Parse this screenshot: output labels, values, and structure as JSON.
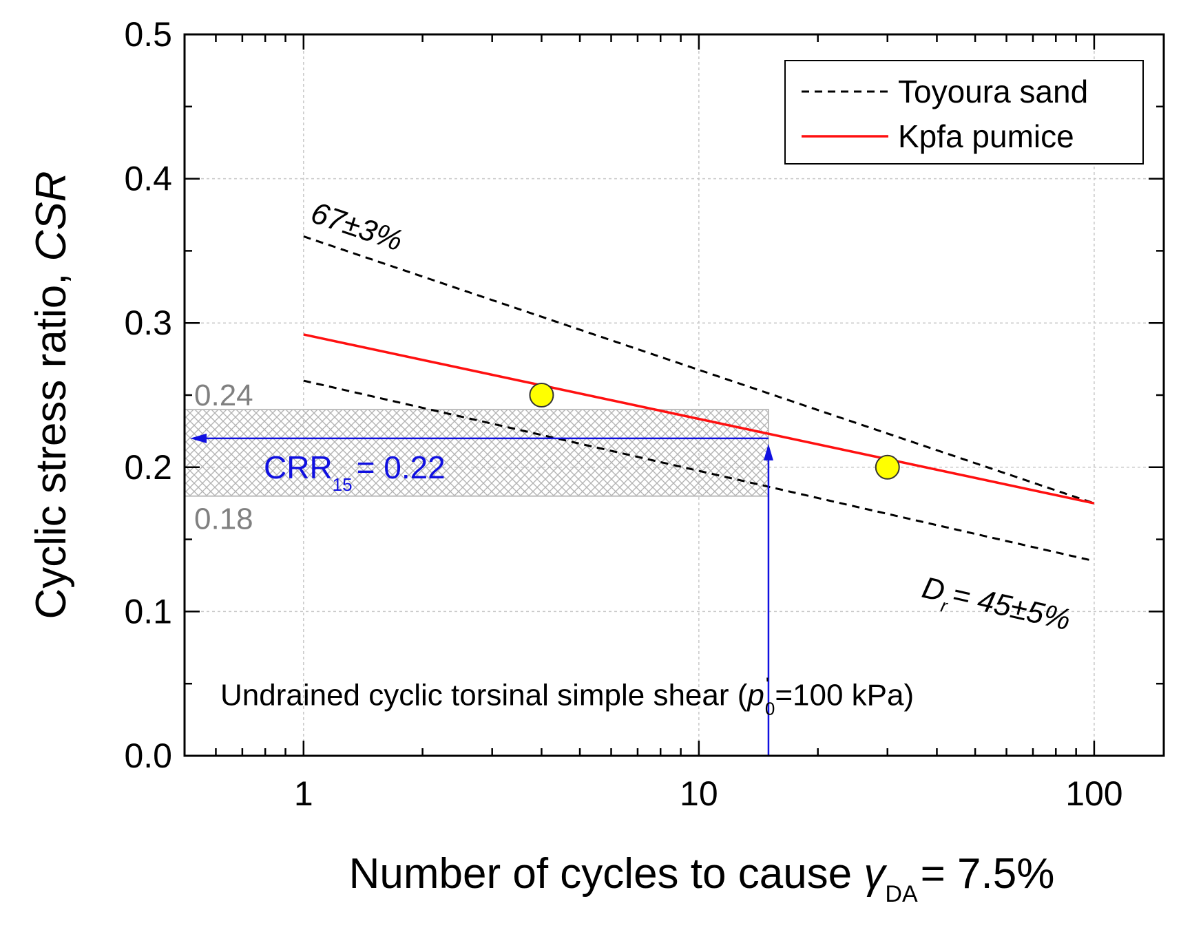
{
  "chart_data": {
    "type": "line",
    "title": "",
    "xlabel": "Number of cycles to cause γDA = 7.5%",
    "xlabel_parts": {
      "main": "Number of cycles to cause ",
      "symbol": "γ",
      "subscript": "DA",
      "suffix": "= 7.5%"
    },
    "ylabel": "Cyclic stress ratio, CSR",
    "ylabel_parts": {
      "main": "Cyclic stress ratio,  ",
      "italic": "CSR"
    },
    "x_scale": "log",
    "xlim": [
      0.5,
      150
    ],
    "ylim": [
      0.0,
      0.5
    ],
    "x_ticks": [
      1,
      10,
      100
    ],
    "x_tick_labels": [
      "1",
      "10",
      "100"
    ],
    "y_ticks": [
      0.0,
      0.1,
      0.2,
      0.3,
      0.4,
      0.5
    ],
    "y_tick_labels": [
      "0.0",
      "0.1",
      "0.2",
      "0.3",
      "0.4",
      "0.5"
    ],
    "grid": true,
    "legend_position": "top-right",
    "series": [
      {
        "name": "Toyoura sand",
        "style": "dashed",
        "color": "#000000",
        "x": [
          1,
          100
        ],
        "y": [
          0.36,
          0.175
        ],
        "annotation": "67±3%",
        "show_in_legend": true
      },
      {
        "name": "Toyoura sand",
        "style": "dashed",
        "color": "#000000",
        "x": [
          1,
          100
        ],
        "y": [
          0.26,
          0.135
        ],
        "annotation": "Dr= 45±5%",
        "show_in_legend": false
      },
      {
        "name": "Kpfa pumice",
        "style": "solid",
        "color": "#ff1010",
        "x": [
          1,
          100
        ],
        "y": [
          0.292,
          0.175
        ],
        "show_in_legend": true
      }
    ],
    "points": [
      {
        "x": 4,
        "y": 0.25,
        "color": "#ffff00"
      },
      {
        "x": 30,
        "y": 0.2,
        "color": "#ffff00"
      }
    ],
    "band": {
      "y_low": 0.18,
      "y_high": 0.24,
      "x_max": 15,
      "low_label": "0.18",
      "high_label": "0.24"
    },
    "crr": {
      "x": 15,
      "y": 0.22,
      "label_main": "CRR",
      "label_sub": "15",
      "label_value": "= 0.22",
      "color": "#1010e0"
    },
    "annotations": {
      "upper_curve": "67±3%",
      "lower_curve_main": "D",
      "lower_curve_sub": "r",
      "lower_curve_value": "= 45±5%",
      "test_note_main": "Undrained cyclic torsinal simple shear (",
      "test_note_p": "p",
      "test_note_prime": "'",
      "test_note_sub": "0",
      "test_note_value": "=100 kPa)"
    }
  }
}
